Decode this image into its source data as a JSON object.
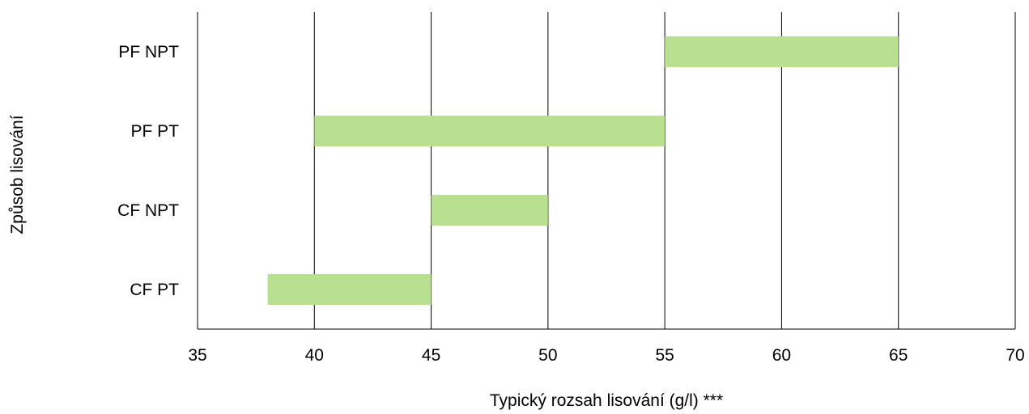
{
  "chart_data": {
    "type": "bar",
    "orientation": "horizontal-range",
    "categories": [
      "PF NPT",
      "PF PT",
      "CF NPT",
      "CF PT"
    ],
    "ranges": [
      {
        "category": "PF NPT",
        "start": 55,
        "end": 65
      },
      {
        "category": "PF PT",
        "start": 40,
        "end": 55
      },
      {
        "category": "CF NPT",
        "start": 45,
        "end": 50
      },
      {
        "category": "CF PT",
        "start": 38,
        "end": 45
      }
    ],
    "xlabel": "Typický rozsah lisování (g/l) ***",
    "ylabel": "Způsob lisování",
    "xlim": [
      35,
      70
    ],
    "xticks": [
      "35",
      "40",
      "45",
      "50",
      "55",
      "60",
      "65",
      "70"
    ],
    "grid": "vertical",
    "legend": "none",
    "bar_color": "#b9df91"
  }
}
